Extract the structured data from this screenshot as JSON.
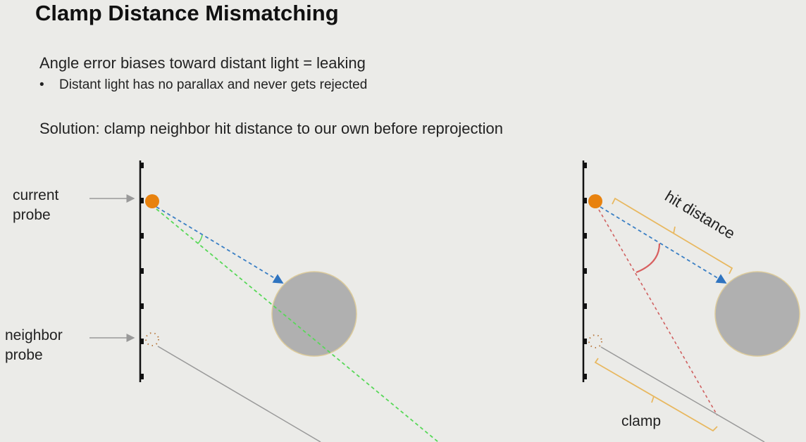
{
  "slide": {
    "title": "Clamp Distance Mismatching",
    "line1": "Angle error biases toward distant light = leaking",
    "bullet": "Distant light has no parallax and never gets rejected",
    "bullet_marker": "•",
    "solution": "Solution: clamp neighbor hit distance to our own before reprojection"
  },
  "diagram": {
    "label_current_1": "current",
    "label_current_2": "probe",
    "label_neighbor_1": "neighbor",
    "label_neighbor_2": "probe",
    "label_hit_distance": "hit distance",
    "label_clamp": "clamp",
    "colors": {
      "probe": "#e8820e",
      "ray": "#3a7fc4",
      "leak_ray": "#58d858",
      "clamp_ray": "#d06060",
      "bracket": "#e8b860",
      "occluder": "#b0b0b0"
    }
  }
}
